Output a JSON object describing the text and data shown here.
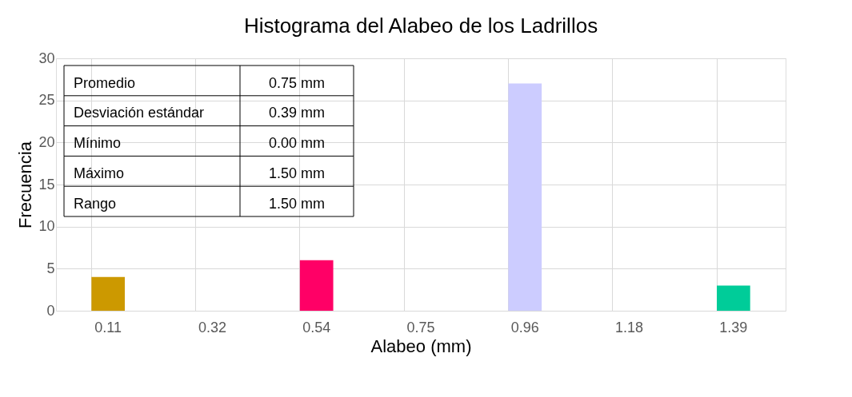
{
  "chart_data": {
    "type": "bar",
    "title": "Histograma del Alabeo de los Ladrillos",
    "xlabel": "Alabeo (mm)",
    "ylabel": "Frecuencia",
    "categories": [
      "0.11",
      "0.32",
      "0.54",
      "0.75",
      "0.96",
      "1.18",
      "1.39"
    ],
    "values": [
      4,
      0,
      6,
      0,
      27,
      0,
      3
    ],
    "colors": [
      "#cc9900",
      null,
      "#ff0066",
      null,
      "#ccccff",
      null,
      "#00cc99"
    ],
    "ylim": [
      0,
      30
    ],
    "yticks": [
      0,
      5,
      10,
      15,
      20,
      25,
      30
    ],
    "grid": true,
    "annotations": [
      "Promedio",
      "0.75 mm",
      "Desviación estándar",
      "0.39 mm",
      "Mínimo",
      "0.00 mm",
      "Máximo",
      "1.50 mm",
      "Rango",
      "1.50 mm"
    ]
  }
}
